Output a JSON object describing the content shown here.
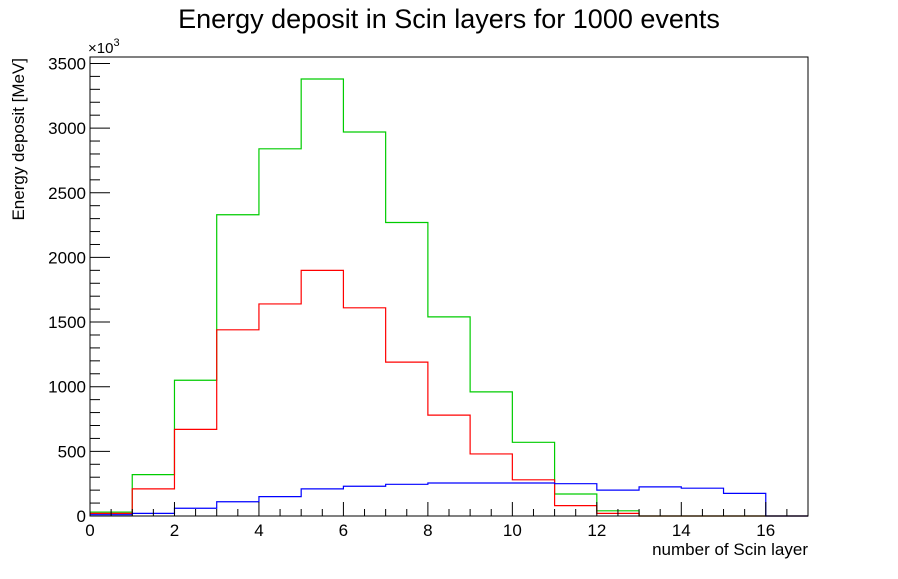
{
  "chart_data": {
    "type": "histogram",
    "title": "Energy deposit in Scin layers for 1000 events",
    "xlabel": "number of Scin layer",
    "ylabel": "Energy deposit [MeV]",
    "y_multiplier": "×10",
    "y_multiplier_exp": "3",
    "xlim": [
      0,
      17
    ],
    "ylim": [
      0,
      3550
    ],
    "x_ticks": [
      0,
      2,
      4,
      6,
      8,
      10,
      12,
      14,
      16
    ],
    "y_ticks": [
      0,
      500,
      1000,
      1500,
      2000,
      2500,
      3000,
      3500
    ],
    "bin_edges": [
      0,
      1,
      2,
      3,
      4,
      5,
      6,
      7,
      8,
      9,
      10,
      11,
      12,
      13,
      14,
      15,
      16,
      17
    ],
    "series": [
      {
        "color": "#00cc00",
        "values": [
          30,
          320,
          1050,
          2330,
          2840,
          3380,
          2970,
          2270,
          1540,
          960,
          570,
          170,
          40,
          0,
          0,
          0,
          0
        ]
      },
      {
        "color": "#ff0000",
        "values": [
          20,
          210,
          670,
          1440,
          1640,
          1900,
          1610,
          1190,
          780,
          480,
          280,
          80,
          20,
          0,
          0,
          0,
          0
        ]
      },
      {
        "color": "#0000ff",
        "values": [
          10,
          20,
          60,
          110,
          150,
          210,
          230,
          245,
          255,
          255,
          255,
          250,
          200,
          225,
          215,
          175,
          0
        ]
      }
    ]
  }
}
